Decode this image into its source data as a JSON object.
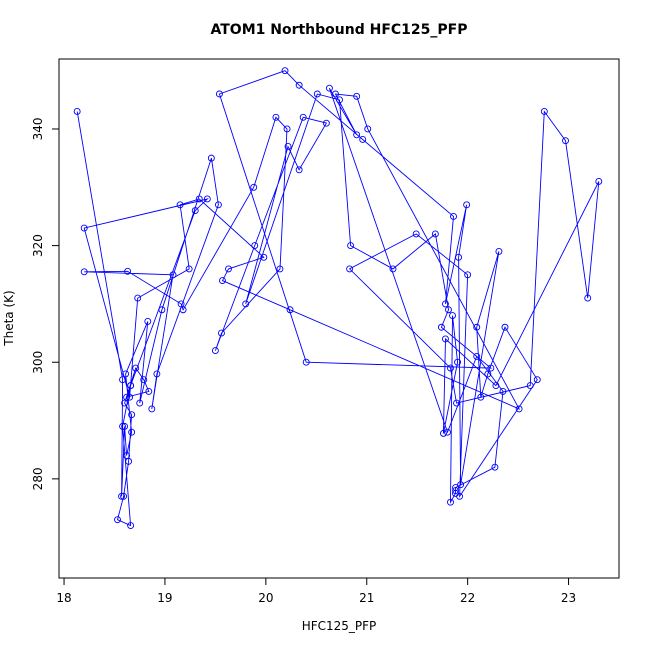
{
  "chart_data": {
    "type": "line",
    "title": "ATOM1 Northbound HFC125_PFP",
    "xlabel": "HFC125_PFP",
    "ylabel": "Theta (K)",
    "xlim": [
      17.95,
      23.5
    ],
    "ylim": [
      263,
      352
    ],
    "xticks": [
      18,
      19,
      20,
      21,
      22,
      23
    ],
    "yticks": [
      280,
      300,
      320,
      340
    ],
    "grid": false,
    "legend": "none",
    "line_color": "#0000ff",
    "marker": "open-circle",
    "series": [
      {
        "x": [
          18.13,
          18.58,
          18.57,
          18.6,
          18.62,
          18.67,
          18.61,
          18.83,
          18.75,
          18.97,
          19.46,
          19.53,
          18.92,
          18.87,
          19.08,
          18.2,
          18.63,
          19.16,
          19.18,
          19.88,
          20.1,
          20.21,
          20.14,
          19.56,
          19.5,
          19.89,
          20.37,
          20.6,
          20.33,
          20.22,
          19.8,
          20.51,
          20.73,
          20.84,
          21.26,
          21.68,
          21.81,
          21.74,
          22.23,
          20.4,
          19.54,
          20.19,
          20.33,
          20.96,
          21.86,
          21.78,
          21.99,
          21.91,
          21.93,
          22.31,
          22.09,
          22.13,
          22.2,
          22.37,
          22.69,
          21.92,
          22.0,
          21.49,
          20.83,
          21.83,
          21.89,
          22.62,
          22.76,
          22.97,
          23.19,
          23.3,
          22.28,
          21.78,
          21.76,
          21.9,
          21.85,
          21.83,
          21.88,
          21.88,
          21.88,
          22.27,
          22.35,
          22.09,
          21.8,
          20.63,
          20.9,
          20.69,
          20.9,
          21.01,
          22.51,
          20.24,
          19.57,
          19.63,
          19.98,
          19.34,
          19.15,
          19.24,
          18.73,
          18.65,
          18.2,
          19.42,
          19.3,
          18.66,
          18.58,
          18.66,
          18.53,
          18.59,
          18.64,
          18.67,
          18.6,
          18.71,
          18.79,
          18.84,
          18.62,
          18.66
        ],
        "y": [
          343,
          297,
          277,
          289,
          284,
          288,
          298,
          307,
          293,
          309,
          335,
          327,
          298,
          292,
          315,
          315.5,
          315.6,
          310,
          309,
          330,
          342,
          340,
          316,
          305,
          302,
          320,
          342,
          341,
          333,
          337,
          310,
          346,
          345,
          320,
          316,
          322,
          309,
          306,
          299,
          300,
          346,
          350,
          347.5,
          338.2,
          325,
          310,
          327,
          318,
          279,
          319,
          306,
          294,
          298,
          306,
          297,
          277,
          315,
          322,
          316,
          299,
          293,
          296,
          343,
          338,
          311,
          331,
          296,
          304,
          287.8,
          300,
          308,
          276,
          277.5,
          278,
          278.5,
          282,
          295,
          301,
          288,
          347,
          339,
          346,
          345.6,
          340,
          292,
          309,
          314,
          316,
          318,
          328,
          327,
          316,
          311,
          294,
          323,
          328,
          326,
          296,
          289,
          272,
          273,
          277,
          283,
          291,
          293,
          299,
          297,
          295,
          294,
          296
        ]
      }
    ]
  }
}
